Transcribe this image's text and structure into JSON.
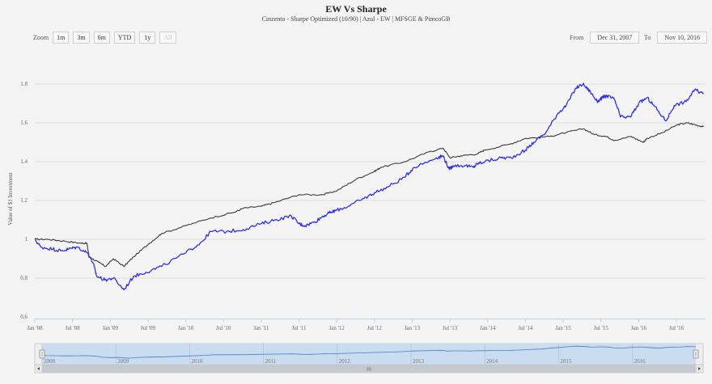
{
  "title": "EW Vs Sharpe",
  "subtitle": "Cinzento - Sharpe Optimized (10/90) | Azul - EW | MFSGE & PimcoGB",
  "range_selector": {
    "zoom_label": "Zoom",
    "buttons": [
      {
        "label": "1m",
        "disabled": false
      },
      {
        "label": "3m",
        "disabled": false
      },
      {
        "label": "6m",
        "disabled": false
      },
      {
        "label": "YTD",
        "disabled": false
      },
      {
        "label": "1y",
        "disabled": false
      },
      {
        "label": "All",
        "disabled": true
      }
    ],
    "from_label": "From",
    "from_value": "Dec 31, 2007",
    "to_label": "To",
    "to_value": "Nov 10, 2016"
  },
  "colors": {
    "series_gray": "#3a3a3a",
    "series_blue": "#2f2ff0",
    "gridline": "#dddddd",
    "navigator_fill": "#c9dcf0",
    "navigator_line": "#4d7fc4",
    "scrollbar": "#c4c8cf"
  },
  "navigator": {
    "labels": [
      "2008",
      "2009",
      "2010",
      "2011",
      "2012",
      "2013",
      "2014",
      "2015",
      "2016"
    ],
    "scrollbar_grip": "III"
  },
  "chart_data": {
    "type": "line",
    "title": "EW Vs Sharpe",
    "subtitle": "Cinzento - Sharpe Optimized (10/90) | Azul - EW | MFSGE & PimcoGB",
    "xlabel": "",
    "ylabel": "Value of $1 Investment",
    "ylim": [
      0.6,
      1.9
    ],
    "yticks": [
      "0.6",
      "0.8",
      "1",
      "1.2",
      "1.4",
      "1.6",
      "1.8"
    ],
    "xticks": [
      "Jan '08",
      "Jul '08",
      "Jan '09",
      "Jul '09",
      "Jan '10",
      "Jul '10",
      "Jan '11",
      "Jul '11",
      "Jan '12",
      "Jul '12",
      "Jan '13",
      "Jul '13",
      "Jan '14",
      "Jul '14",
      "Jan '15",
      "Jul '15",
      "Jan '16",
      "Jul '16"
    ],
    "grid": true,
    "legend": "none (described in subtitle)",
    "x_start": "2007-12-31",
    "x_end": "2016-11-10",
    "series": [
      {
        "name": "Cinzento - Sharpe Optimized (10/90)",
        "color": "#3a3a3a",
        "x": [
          2008.0,
          2008.18,
          2008.4,
          2008.61,
          2008.69,
          2008.72,
          2008.85,
          2008.94,
          2009.04,
          2009.18,
          2009.31,
          2009.52,
          2009.68,
          2010.0,
          2010.33,
          2010.65,
          2010.76,
          2011.0,
          2011.18,
          2011.5,
          2011.82,
          2012.0,
          2012.26,
          2012.5,
          2012.58,
          2012.9,
          2013.22,
          2013.41,
          2013.5,
          2013.64,
          2013.86,
          2013.96,
          2014.29,
          2014.5,
          2014.82,
          2015.04,
          2015.27,
          2015.41,
          2015.57,
          2015.68,
          2015.9,
          2016.06,
          2016.11,
          2016.32,
          2016.51,
          2016.64,
          2016.75,
          2016.86
        ],
        "values": [
          1.0,
          1.0,
          0.99,
          0.98,
          0.98,
          0.91,
          0.88,
          0.86,
          0.9,
          0.86,
          0.91,
          0.98,
          1.03,
          1.07,
          1.11,
          1.14,
          1.16,
          1.17,
          1.19,
          1.23,
          1.23,
          1.25,
          1.31,
          1.35,
          1.37,
          1.4,
          1.45,
          1.47,
          1.42,
          1.43,
          1.44,
          1.46,
          1.49,
          1.52,
          1.53,
          1.55,
          1.57,
          1.54,
          1.53,
          1.51,
          1.53,
          1.5,
          1.52,
          1.55,
          1.59,
          1.6,
          1.59,
          1.58
        ]
      },
      {
        "name": "Azul - EW",
        "color": "#2f2ff0",
        "x": [
          2008.0,
          2008.08,
          2008.24,
          2008.35,
          2008.45,
          2008.56,
          2008.7,
          2008.77,
          2008.82,
          2008.93,
          2009.04,
          2009.18,
          2009.31,
          2009.47,
          2009.68,
          2010.0,
          2010.22,
          2010.33,
          2010.54,
          2010.76,
          2011.0,
          2011.18,
          2011.4,
          2011.5,
          2011.58,
          2011.71,
          2011.82,
          2011.93,
          2012.0,
          2012.15,
          2012.36,
          2012.5,
          2012.68,
          2012.9,
          2013.02,
          2013.32,
          2013.41,
          2013.49,
          2013.54,
          2013.7,
          2013.81,
          2013.86,
          2013.96,
          2014.18,
          2014.31,
          2014.5,
          2014.61,
          2014.77,
          2014.93,
          2015.04,
          2015.17,
          2015.26,
          2015.36,
          2015.45,
          2015.52,
          2015.58,
          2015.68,
          2015.76,
          2015.89,
          2016.0,
          2016.11,
          2016.2,
          2016.36,
          2016.47,
          2016.63,
          2016.74,
          2016.86
        ],
        "values": [
          1.0,
          0.96,
          0.95,
          0.94,
          0.95,
          0.96,
          0.93,
          0.88,
          0.81,
          0.79,
          0.8,
          0.74,
          0.81,
          0.83,
          0.86,
          0.93,
          0.99,
          1.04,
          1.04,
          1.05,
          1.08,
          1.1,
          1.12,
          1.08,
          1.07,
          1.09,
          1.12,
          1.14,
          1.15,
          1.17,
          1.21,
          1.24,
          1.27,
          1.32,
          1.37,
          1.42,
          1.43,
          1.36,
          1.38,
          1.38,
          1.37,
          1.39,
          1.4,
          1.42,
          1.42,
          1.46,
          1.5,
          1.55,
          1.65,
          1.69,
          1.78,
          1.8,
          1.76,
          1.71,
          1.73,
          1.74,
          1.72,
          1.63,
          1.63,
          1.7,
          1.73,
          1.69,
          1.61,
          1.69,
          1.71,
          1.77,
          1.75
        ]
      }
    ]
  }
}
